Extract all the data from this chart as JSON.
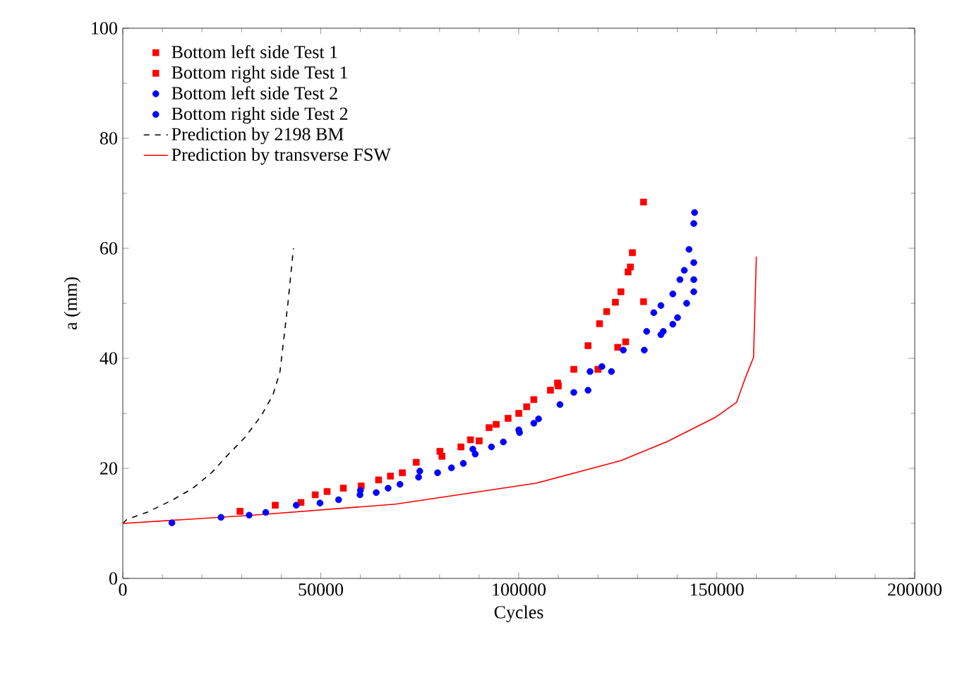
{
  "chart_data": {
    "type": "scatter",
    "xlabel": "Cycles",
    "ylabel": "a (mm)",
    "xlim": [
      0,
      200000
    ],
    "ylim": [
      0,
      100
    ],
    "xticks": [
      0,
      50000,
      100000,
      150000,
      200000
    ],
    "yticks": [
      0,
      20,
      40,
      60,
      80,
      100
    ],
    "legend": "top left",
    "series": [
      {
        "name": "Bottom left side Test 1",
        "color": "#ff0000",
        "marker": "square",
        "x": [
          29600,
          38500,
          45000,
          48600,
          51600,
          55700,
          60200,
          64600,
          67600,
          70600,
          74100,
          80100,
          80600,
          85400,
          87800,
          92500,
          94300,
          97300,
          102000,
          103800,
          108000,
          109800,
          113900,
          117500,
          120400,
          122200,
          124400,
          125800,
          127600,
          128200,
          128700,
          131500
        ],
        "values": [
          12.2,
          13.3,
          13.8,
          15.2,
          15.8,
          16.4,
          16.8,
          17.9,
          18.6,
          19.2,
          21.1,
          23.1,
          22.2,
          23.9,
          25.2,
          27.4,
          28.0,
          29.1,
          31.2,
          32.5,
          34.2,
          35.5,
          38.0,
          42.3,
          46.3,
          48.5,
          50.2,
          52.1,
          55.7,
          56.6,
          59.2,
          68.4
        ]
      },
      {
        "name": "Bottom right side Test 1",
        "color": "#ff0000",
        "marker": "square",
        "x": [
          90000,
          100000,
          110000,
          120000,
          125000,
          127000,
          131500
        ],
        "values": [
          25,
          30,
          35,
          38,
          42,
          43,
          50.3
        ]
      },
      {
        "name": "Bottom left side Test 2",
        "color": "#0000ff",
        "marker": "circle",
        "x": [
          12400,
          24800,
          31900,
          36100,
          43800,
          49800,
          54500,
          59900,
          64000,
          67000,
          70000,
          74700,
          79500,
          83000,
          86000,
          89000,
          93100,
          96100,
          100200,
          103800,
          110400,
          117500,
          123400,
          131700,
          135900,
          136500,
          138900,
          140100,
          142400,
          144200,
          144200,
          144200
        ],
        "values": [
          10.1,
          11.1,
          11.5,
          12.0,
          13.3,
          13.7,
          14.3,
          15.2,
          15.6,
          16.4,
          17.1,
          18.4,
          19.2,
          20.1,
          20.9,
          22.6,
          23.9,
          24.8,
          26.5,
          28.2,
          31.6,
          34.2,
          37.6,
          41.5,
          44.3,
          44.9,
          46.2,
          47.4,
          50.0,
          52.1,
          54.3,
          57.4
        ]
      },
      {
        "name": "Bottom right side Test 2",
        "color": "#0000ff",
        "marker": "circle",
        "x": [
          60000,
          75000,
          88400,
          100000,
          105000,
          113900,
          118000,
          121000,
          126400,
          132300,
          134100,
          135900,
          138900,
          140700,
          141800,
          143000,
          144200,
          144400
        ],
        "values": [
          16,
          19.5,
          23.5,
          27,
          29,
          33.8,
          37.6,
          38.5,
          41.5,
          44.9,
          48.3,
          49.6,
          51.7,
          54.3,
          56.0,
          59.8,
          64.5,
          66.5
        ]
      },
      {
        "name": "Prediction by 2198 BM",
        "type": "line",
        "color": "#000000",
        "line_style": "dashed",
        "marker": "none",
        "x": [
          0,
          1000,
          6400,
          12400,
          17700,
          22400,
          26600,
          30800,
          34900,
          37900,
          39700,
          41700,
          43100
        ],
        "values": [
          10.0,
          10.7,
          12.1,
          14.2,
          16.4,
          19.2,
          22.5,
          25.6,
          29.5,
          33.3,
          37.6,
          50,
          60
        ]
      },
      {
        "name": "Prediction by transverse FSW",
        "type": "line",
        "color": "#ff0000",
        "line_style": "solid",
        "marker": "none",
        "x": [
          0,
          33100,
          68800,
          104400,
          125800,
          137600,
          149700,
          155000,
          157200,
          159300,
          160000
        ],
        "values": [
          10.0,
          11.5,
          13.5,
          17.3,
          21.4,
          24.9,
          29.3,
          32,
          36.4,
          40.2,
          58.5
        ]
      }
    ]
  }
}
